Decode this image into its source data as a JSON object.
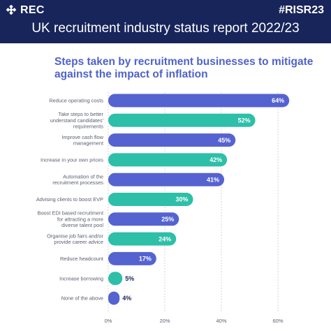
{
  "header": {
    "brand": "REC",
    "hashtag": "#RISR23",
    "title": "UK recruitment industry status report 2022/23",
    "background": "#18255a"
  },
  "chart_data": {
    "type": "bar",
    "orientation": "horizontal",
    "title": "Steps taken by recruitment businesses to mitigate against the impact of inflation",
    "categories": [
      "Reduce operating costs",
      "Take steps to better understand candidates' requirements",
      "Improve cash flow management",
      "Increase in your own prices",
      "Automation of the recruitment processes",
      "Advising clients to boost EVP",
      "Boost EDI based recruitment for attracting a more diverse talent pool",
      "Organise job fairs and/or provide career advice",
      "Reduce headcount",
      "Increase borrowing",
      "None of the above"
    ],
    "category_lines": [
      [
        "Reduce operating costs"
      ],
      [
        "Take steps to better",
        "understand candidates'",
        "requirements"
      ],
      [
        "Improve cash flow",
        "management"
      ],
      [
        "Increase in your own prices"
      ],
      [
        "Automation of the",
        "recruitment processes"
      ],
      [
        "Advising clients to boost EVP"
      ],
      [
        "Boost EDI based recruitment",
        "for attracting a more",
        "diverse talent pool"
      ],
      [
        "Organise job fairs and/or",
        "provide career advice"
      ],
      [
        "Reduce headcount"
      ],
      [
        "Increase borrowing"
      ],
      [
        "None of the above"
      ]
    ],
    "values": [
      64,
      52,
      45,
      42,
      41,
      30,
      25,
      24,
      17,
      5,
      4
    ],
    "value_labels": [
      "64%",
      "52%",
      "45%",
      "42%",
      "41%",
      "30%",
      "25%",
      "24%",
      "17%",
      "5%",
      "4%"
    ],
    "bar_colors": [
      "#5563d1",
      "#2dbfa8",
      "#5563d1",
      "#2dbfa8",
      "#5563d1",
      "#2dbfa8",
      "#5563d1",
      "#2dbfa8",
      "#5563d1",
      "#2dbfa8",
      "#5563d1"
    ],
    "x_ticks": [
      0,
      20,
      40,
      60
    ],
    "x_tick_labels": [
      "0%",
      "20%",
      "40%",
      "60%"
    ],
    "xlim": [
      0,
      60
    ],
    "grid": "vertical dashed",
    "label_color": "#5c6070",
    "outside_value_color": "#18255a",
    "inside_value_color": "#ffffff"
  }
}
